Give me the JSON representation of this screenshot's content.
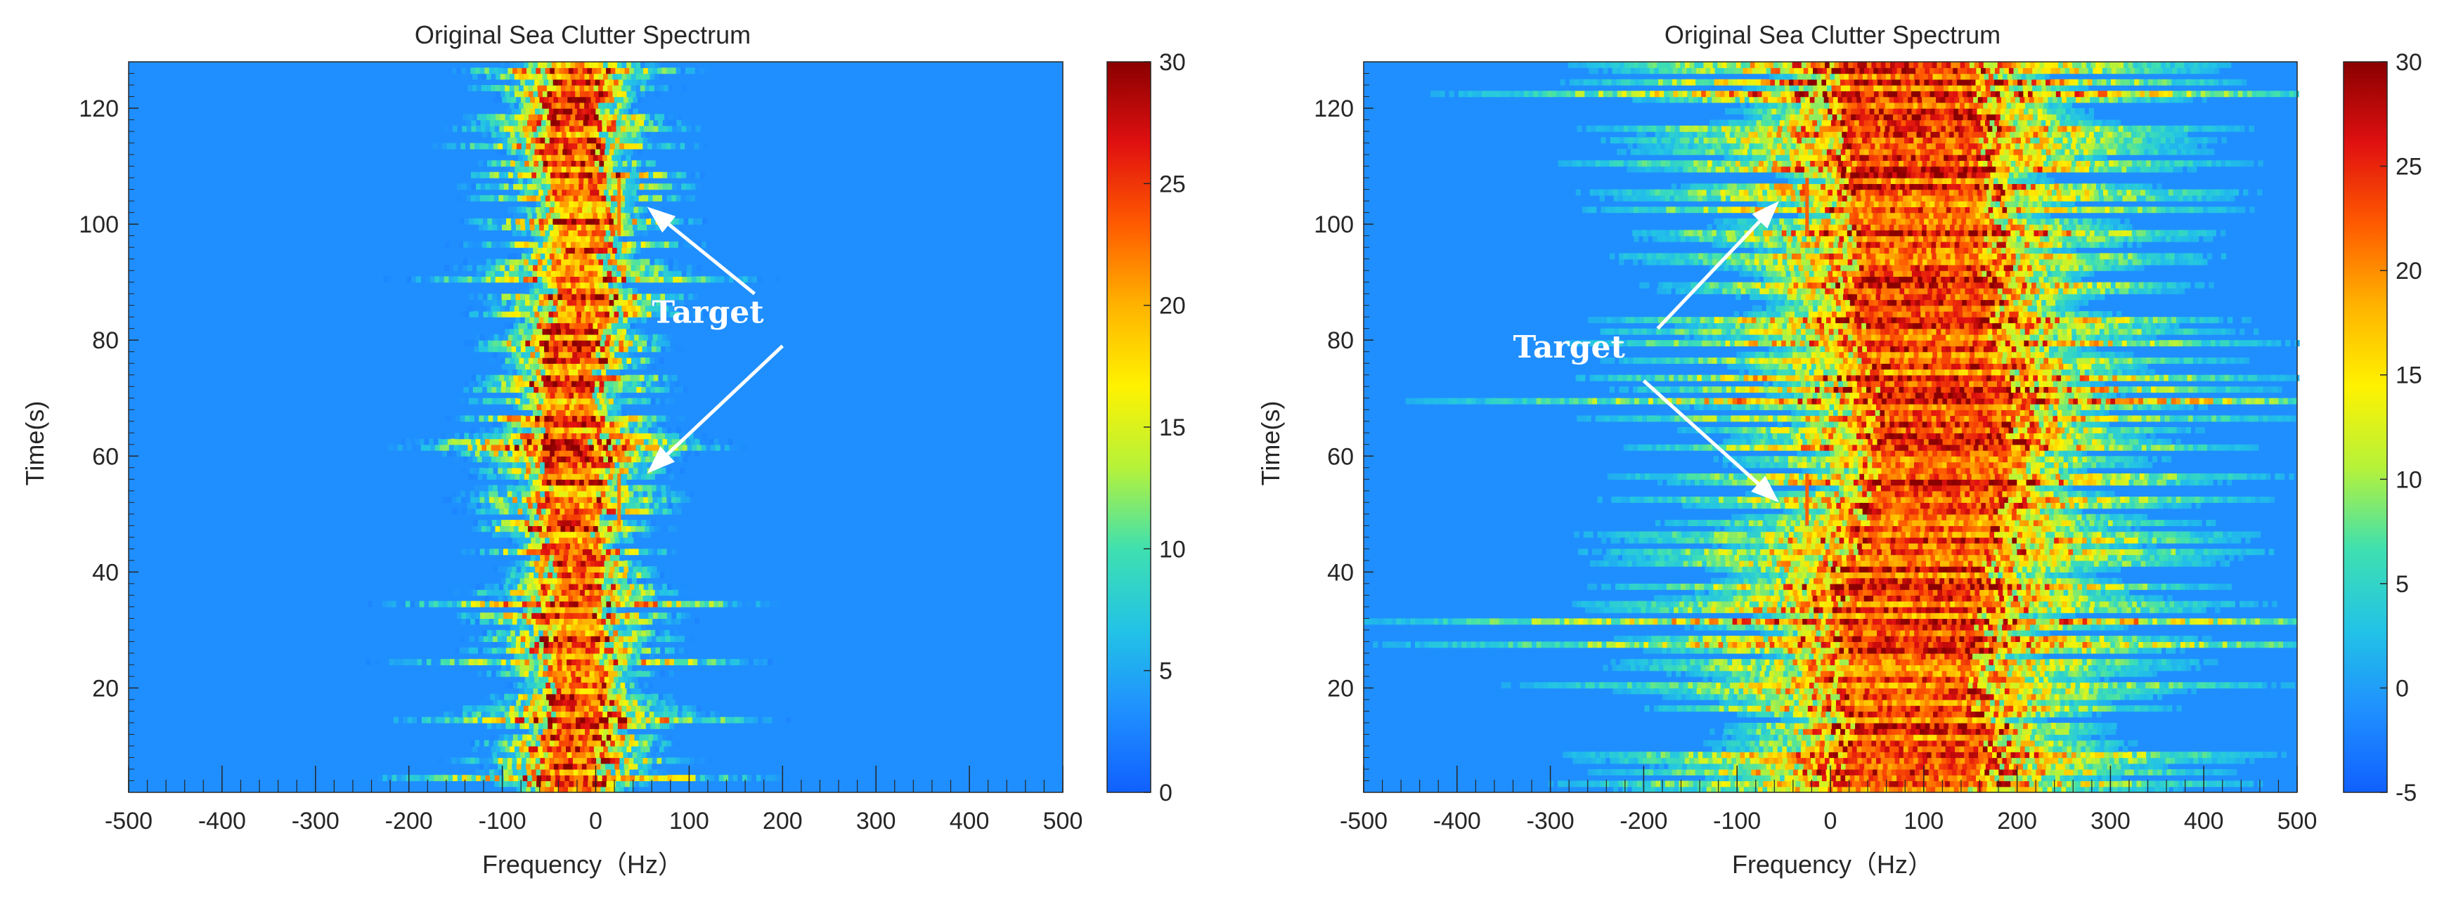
{
  "colors": {
    "background": "#1f8fff",
    "colormap": [
      "#1060ff",
      "#1f8fff",
      "#22c3e6",
      "#3fe0b0",
      "#b5f23a",
      "#fff200",
      "#ffb300",
      "#ff5a00",
      "#e01010",
      "#8a0000"
    ],
    "annotation": "#ffffff",
    "target_line": "#ff9a00"
  },
  "chart_data": [
    {
      "type": "heatmap",
      "title": "Original Sea Clutter Spectrum",
      "xlabel": "Frequency（Hz）",
      "ylabel": "Time(s)",
      "xlim": [
        -500,
        500
      ],
      "ylim": [
        2,
        128
      ],
      "xticks": [
        -500,
        -400,
        -300,
        -200,
        -100,
        0,
        100,
        200,
        300,
        400,
        500
      ],
      "yticks": [
        20,
        40,
        60,
        80,
        100,
        120
      ],
      "colorbar": {
        "clim": [
          0,
          30
        ],
        "ticks": [
          0,
          5,
          10,
          15,
          20,
          25,
          30
        ]
      },
      "clutter_band": {
        "center_hz": [
          [
            2,
            -30
          ],
          [
            10,
            -25
          ],
          [
            20,
            -20
          ],
          [
            30,
            -25
          ],
          [
            40,
            -25
          ],
          [
            50,
            -30
          ],
          [
            60,
            -30
          ],
          [
            70,
            -30
          ],
          [
            80,
            -25
          ],
          [
            90,
            -20
          ],
          [
            100,
            -20
          ],
          [
            110,
            -25
          ],
          [
            120,
            -25
          ],
          [
            128,
            -25
          ]
        ],
        "core_halfwidth_hz": 25,
        "spread_hz": 130,
        "peak_value": 30
      },
      "targets": [
        {
          "freq_hz": 25,
          "t_start": 98,
          "t_end": 108,
          "value": 22
        },
        {
          "freq_hz": 25,
          "t_start": 48,
          "t_end": 57,
          "value": 22
        }
      ],
      "annotation": {
        "text": "Target",
        "text_pos": [
          120,
          83
        ],
        "arrows": [
          {
            "from": [
              170,
              88
            ],
            "to": [
              55,
              103
            ]
          },
          {
            "from": [
              200,
              79
            ],
            "to": [
              55,
              57
            ]
          }
        ]
      }
    },
    {
      "type": "heatmap",
      "title": "Original Sea Clutter Spectrum",
      "xlabel": "Frequency（Hz）",
      "ylabel": "Time(s)",
      "xlim": [
        -500,
        500
      ],
      "ylim": [
        2,
        128
      ],
      "xticks": [
        -500,
        -400,
        -300,
        -200,
        -100,
        0,
        100,
        200,
        300,
        400,
        500
      ],
      "yticks": [
        20,
        40,
        60,
        80,
        100,
        120
      ],
      "colorbar": {
        "clim": [
          -5,
          30
        ],
        "ticks": [
          -5,
          0,
          5,
          10,
          15,
          20,
          25,
          30
        ]
      },
      "clutter_band": {
        "center_hz": [
          [
            2,
            80
          ],
          [
            10,
            90
          ],
          [
            20,
            80
          ],
          [
            30,
            80
          ],
          [
            40,
            90
          ],
          [
            50,
            110
          ],
          [
            60,
            120
          ],
          [
            70,
            120
          ],
          [
            80,
            100
          ],
          [
            90,
            95
          ],
          [
            100,
            90
          ],
          [
            110,
            85
          ],
          [
            120,
            85
          ],
          [
            128,
            80
          ]
        ],
        "core_halfwidth_hz": 70,
        "spread_hz": 320,
        "peak_value": 30
      },
      "targets": [
        {
          "freq_hz": -25,
          "t_start": 98,
          "t_end": 108,
          "value": 22
        },
        {
          "freq_hz": -25,
          "t_start": 48,
          "t_end": 57,
          "value": 22
        }
      ],
      "annotation": {
        "text": "Target",
        "text_pos": [
          -280,
          77
        ],
        "arrows": [
          {
            "from": [
              -185,
              82
            ],
            "to": [
              -55,
              104
            ]
          },
          {
            "from": [
              -200,
              73
            ],
            "to": [
              -55,
              52
            ]
          }
        ]
      }
    }
  ]
}
